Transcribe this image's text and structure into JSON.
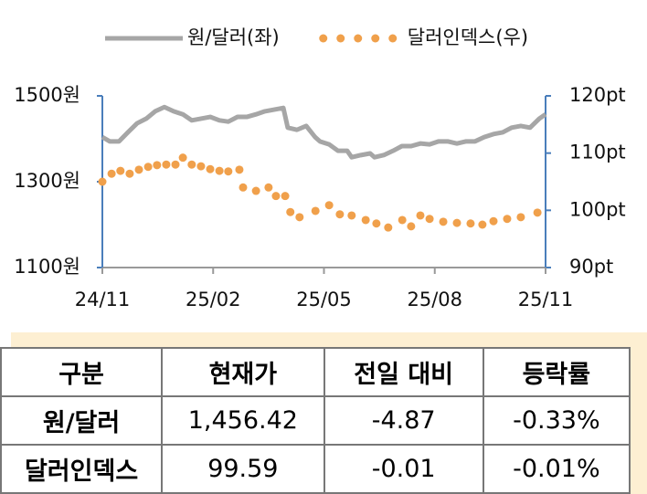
{
  "chart_data": {
    "type": "line",
    "legend": "top",
    "xlim": [
      0,
      12
    ],
    "xticks": [
      {
        "value": 0,
        "label": "24/11"
      },
      {
        "value": 3,
        "label": "25/02"
      },
      {
        "value": 6,
        "label": "25/05"
      },
      {
        "value": 9,
        "label": "25/08"
      },
      {
        "value": 12,
        "label": "25/11"
      }
    ],
    "ylim": [
      1100,
      1500
    ],
    "yticks": [
      {
        "value": 1100,
        "label": "1100원"
      },
      {
        "value": 1300,
        "label": "1300원"
      },
      {
        "value": 1500,
        "label": "1500원"
      }
    ],
    "y2lim": [
      90,
      120
    ],
    "y2ticks": [
      {
        "value": 90,
        "label": "90pt"
      },
      {
        "value": 100,
        "label": "100pt"
      },
      {
        "value": 110,
        "label": "110pt"
      },
      {
        "value": 120,
        "label": "120pt"
      }
    ],
    "axis_color": "#4a7ebb",
    "series": [
      {
        "name": "원/달러(좌)",
        "color": "#a6a6a6",
        "mode": "line",
        "x": [
          0,
          0.2,
          0.45,
          0.69,
          0.94,
          1.19,
          1.43,
          1.68,
          1.93,
          2.18,
          2.42,
          2.67,
          2.92,
          3.17,
          3.41,
          3.66,
          3.91,
          4.16,
          4.4,
          4.65,
          4.9,
          5.02,
          5.27,
          5.52,
          5.76,
          5.89,
          6.14,
          6.38,
          6.63,
          6.75,
          7.0,
          7.25,
          7.37,
          7.62,
          7.87,
          8.11,
          8.36,
          8.61,
          8.86,
          9.1,
          9.35,
          9.6,
          9.85,
          10.09,
          10.34,
          10.59,
          10.84,
          11.08,
          11.33,
          11.58,
          11.83,
          12
        ],
        "values": [
          1404,
          1394,
          1394,
          1415,
          1436,
          1447,
          1464,
          1474,
          1464,
          1457,
          1443,
          1447,
          1451,
          1443,
          1440,
          1451,
          1451,
          1457,
          1464,
          1468,
          1472,
          1426,
          1421,
          1430,
          1404,
          1394,
          1387,
          1372,
          1372,
          1357,
          1362,
          1366,
          1357,
          1362,
          1372,
          1383,
          1383,
          1389,
          1387,
          1394,
          1394,
          1389,
          1394,
          1394,
          1404,
          1411,
          1415,
          1426,
          1430,
          1426,
          1447,
          1457
        ]
      },
      {
        "name": "달러인덱스(우)",
        "color": "#f0a04b",
        "mode": "markers",
        "axis": "y2",
        "x": [
          0,
          0.25,
          0.49,
          0.74,
          0.99,
          1.24,
          1.48,
          1.73,
          1.98,
          2.18,
          2.42,
          2.67,
          2.92,
          3.17,
          3.41,
          3.71,
          3.81,
          4.16,
          4.5,
          4.7,
          4.95,
          5.09,
          5.34,
          5.77,
          6.14,
          6.43,
          6.75,
          7.13,
          7.42,
          7.74,
          8.12,
          8.36,
          8.61,
          8.86,
          9.23,
          9.6,
          9.97,
          10.29,
          10.59,
          10.96,
          11.33,
          11.78
        ],
        "values": [
          105.0,
          106.4,
          106.9,
          106.4,
          107.1,
          107.6,
          107.9,
          108.0,
          108.0,
          109.2,
          108.0,
          107.7,
          107.2,
          106.9,
          106.8,
          107.1,
          104.0,
          103.4,
          104.0,
          102.5,
          102.5,
          99.7,
          98.8,
          99.9,
          100.9,
          99.3,
          99.1,
          98.3,
          97.7,
          97.0,
          98.3,
          97.2,
          99.1,
          98.5,
          98.0,
          97.8,
          97.7,
          97.5,
          98.1,
          98.5,
          98.8,
          99.6
        ]
      }
    ]
  },
  "table": {
    "columns": [
      "구분",
      "현재가",
      "전일 대비",
      "등락률"
    ],
    "rows": [
      [
        "원/달러",
        "1,456.42",
        "-4.87",
        "-0.33%"
      ],
      [
        "달러인덱스",
        "99.59",
        "-0.01",
        "-0.01%"
      ]
    ]
  }
}
